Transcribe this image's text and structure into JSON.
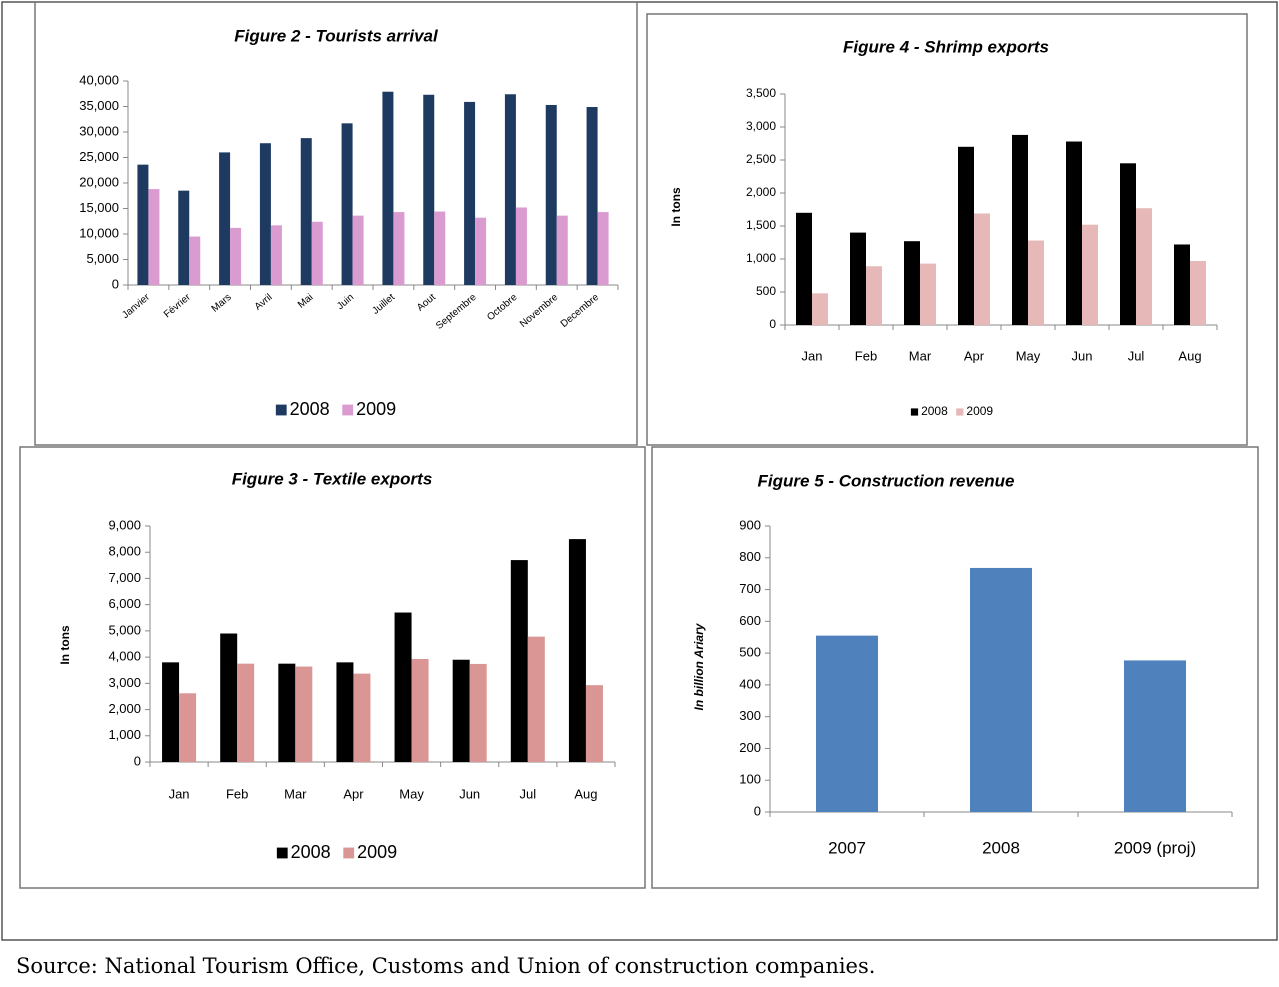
{
  "chart_data": [
    {
      "type": "bar",
      "title": "Figure 2 - Tourists arrival",
      "categories": [
        "Janvier",
        "Février",
        "Mars",
        "Avril",
        "Mai",
        "Juin",
        "Juillet",
        "Aout",
        "Septembre",
        "Octobre",
        "Novembre",
        "Decembre"
      ],
      "series": [
        {
          "name": "2008",
          "color": "#1f3a60",
          "values": [
            23600,
            18500,
            26000,
            27800,
            28800,
            31700,
            37900,
            37300,
            35900,
            37400,
            35300,
            34900
          ]
        },
        {
          "name": "2009",
          "color": "#d99bd0",
          "values": [
            18800,
            9500,
            11200,
            11700,
            12400,
            13600,
            14300,
            14400,
            13200,
            15200,
            13600,
            14300
          ]
        }
      ],
      "ylim": [
        0,
        40000
      ],
      "yticks": [
        0,
        {
          "value": 5000,
          "label": "5,000"
        },
        {
          "value": 10000,
          "label": "10,000"
        },
        {
          "value": 15000,
          "label": "15,000"
        },
        {
          "value": 20000,
          "label": "20,000"
        },
        {
          "value": 25000,
          "label": "25,000"
        },
        {
          "value": 30000,
          "label": "30,000"
        },
        {
          "value": 35000,
          "label": "35,000"
        },
        {
          "value": 40000,
          "label": "40,000"
        }
      ],
      "grid": false,
      "legend": "bottom"
    },
    {
      "type": "bar",
      "title": "Figure 4 - Shrimp exports",
      "y_label": "In tons",
      "categories": [
        "Jan",
        "Feb",
        "Mar",
        "Apr",
        "May",
        "Jun",
        "Jul",
        "Aug"
      ],
      "series": [
        {
          "name": "2008",
          "color": "#000000",
          "values": [
            1700,
            1400,
            1270,
            2700,
            2880,
            2780,
            2450,
            1220
          ]
        },
        {
          "name": "2009",
          "color": "#e6b9b8",
          "values": [
            480,
            890,
            930,
            1690,
            1280,
            1520,
            1770,
            970
          ]
        }
      ],
      "ylim": [
        0,
        3500
      ],
      "yticks": [
        0,
        500,
        {
          "value": 1000,
          "label": "1,000"
        },
        {
          "value": 1500,
          "label": "1,500"
        },
        {
          "value": 2000,
          "label": "2,000"
        },
        {
          "value": 2500,
          "label": "2,500"
        },
        {
          "value": 3000,
          "label": "3,000"
        },
        {
          "value": 3500,
          "label": "3,500"
        }
      ],
      "grid": false,
      "legend": "bottom"
    },
    {
      "type": "bar",
      "title": "Figure 3 -  Textile exports",
      "y_label": "In tons",
      "categories": [
        "Jan",
        "Feb",
        "Mar",
        "Apr",
        "May",
        "Jun",
        "Jul",
        "Aug"
      ],
      "series": [
        {
          "name": "2008",
          "color": "#000000",
          "values": [
            3800,
            4900,
            3750,
            3800,
            5700,
            3900,
            7700,
            8500
          ]
        },
        {
          "name": "2009",
          "color": "#d99694",
          "values": [
            2620,
            3750,
            3640,
            3370,
            3930,
            3740,
            4780,
            2930
          ]
        }
      ],
      "ylim": [
        0,
        9000
      ],
      "yticks": [
        0,
        {
          "value": 1000,
          "label": "1,000"
        },
        {
          "value": 2000,
          "label": "2,000"
        },
        {
          "value": 3000,
          "label": "3,000"
        },
        {
          "value": 4000,
          "label": "4,000"
        },
        {
          "value": 5000,
          "label": "5,000"
        },
        {
          "value": 6000,
          "label": "6,000"
        },
        {
          "value": 7000,
          "label": "7,000"
        },
        {
          "value": 8000,
          "label": "8,000"
        },
        {
          "value": 9000,
          "label": "9,000"
        }
      ],
      "grid": false,
      "legend": "bottom"
    },
    {
      "type": "bar",
      "title": "Figure 5 - Construction revenue",
      "y_label": "In billion Ariary",
      "categories": [
        "2007",
        "2008",
        "2009 (proj)"
      ],
      "values": [
        555,
        768,
        477
      ],
      "color": "#4f81bd",
      "ylim": [
        0,
        900
      ],
      "yticks": [
        0,
        100,
        200,
        300,
        400,
        500,
        600,
        700,
        800,
        900
      ],
      "grid": false
    }
  ],
  "source": "Source: National Tourism Office, Customs and Union of construction companies."
}
